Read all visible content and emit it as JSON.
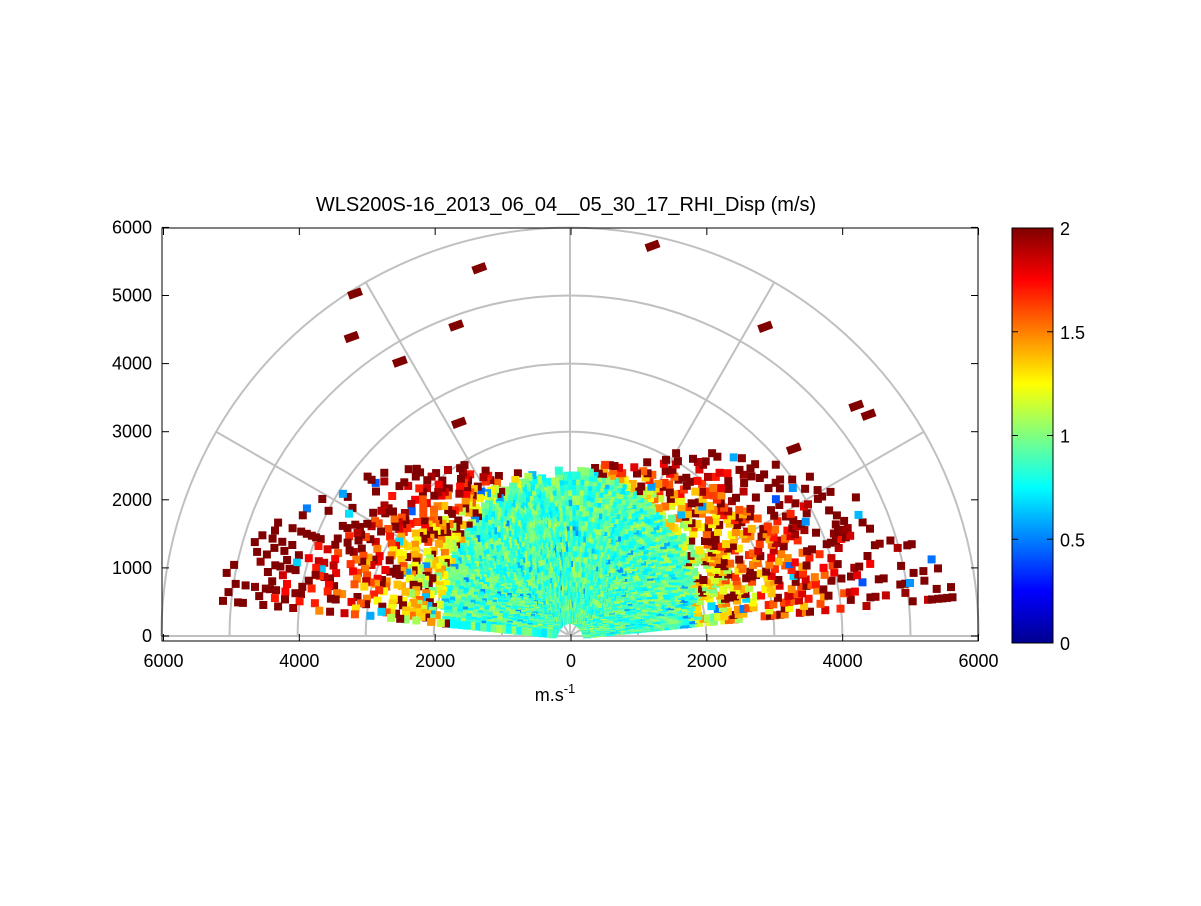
{
  "chart_data": {
    "type": "heatmap",
    "projection": "polar-rhi",
    "title": "WLS200S-16_2013_06_04__05_30_17_RHI_Disp (m/s)",
    "xlabel": "m.s",
    "xlabel_superscript": "-1",
    "ylabel": "",
    "x_ticks": [
      "6000",
      "4000",
      "2000",
      "0",
      "2000",
      "4000",
      "6000"
    ],
    "y_ticks": [
      "0",
      "1000",
      "2000",
      "3000",
      "4000",
      "5000",
      "6000"
    ],
    "xlim": [
      -6000,
      6000
    ],
    "ylim": [
      0,
      6000
    ],
    "range_rings": [
      1000,
      2000,
      3000,
      4000,
      5000,
      6000
    ],
    "spokes_deg": [
      0,
      30,
      60,
      90,
      120,
      150,
      180
    ],
    "colorbar": {
      "colormap": "jet",
      "min": 0,
      "max": 2,
      "ticks": [
        "0",
        "0.5",
        "1",
        "1.5",
        "2"
      ]
    },
    "data_summary": {
      "core_value_approx": 0.9,
      "core_max_range_approx": 2500,
      "scan_elevation_min_deg": 5,
      "scan_elevation_max_deg": 175,
      "outer_values_approx": 2.0,
      "outer_range_extent_approx": 6000,
      "sparse_high_altitude_points": [
        {
          "x": 1200,
          "y": 5730,
          "value": 2.0
        },
        {
          "x": -1350,
          "y": 5400,
          "value": 2.0
        },
        {
          "x": -3180,
          "y": 5030,
          "value": 2.0
        },
        {
          "x": -3230,
          "y": 4390,
          "value": 2.0
        },
        {
          "x": -2520,
          "y": 4030,
          "value": 2.0
        },
        {
          "x": -1690,
          "y": 4560,
          "value": 2.0
        },
        {
          "x": 2860,
          "y": 4540,
          "value": 2.0
        },
        {
          "x": 4200,
          "y": 3380,
          "value": 2.0
        },
        {
          "x": 4380,
          "y": 3250,
          "value": 2.0
        },
        {
          "x": -1650,
          "y": 3130,
          "value": 2.0
        },
        {
          "x": 3280,
          "y": 2750,
          "value": 2.0
        }
      ]
    }
  }
}
